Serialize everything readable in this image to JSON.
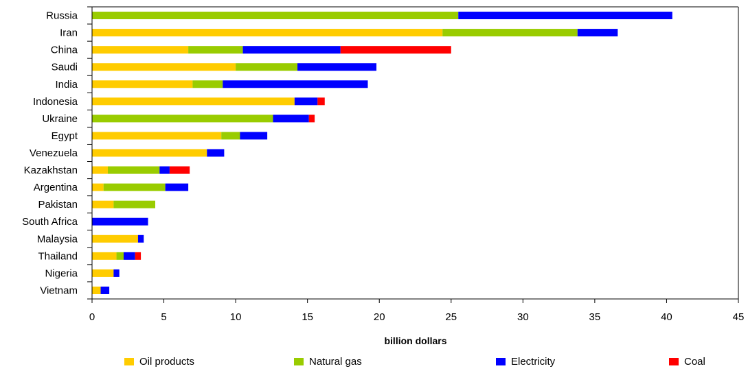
{
  "chart_data": {
    "type": "bar",
    "orientation": "horizontal",
    "stacked": true,
    "title": "",
    "xlabel": "billion dollars",
    "ylabel": "",
    "xlim": [
      0,
      45
    ],
    "xticks": [
      0,
      5,
      10,
      15,
      20,
      25,
      30,
      35,
      40,
      45
    ],
    "grid": false,
    "legend_position": "bottom",
    "categories": [
      "Russia",
      "Iran",
      "China",
      "Saudi",
      "India",
      "Indonesia",
      "Ukraine",
      "Egypt",
      "Venezuela",
      "Kazakhstan",
      "Argentina",
      "Pakistan",
      "South Africa",
      "Malaysia",
      "Thailand",
      "Nigeria",
      "Vietnam"
    ],
    "series": [
      {
        "name": "Oil products",
        "color": "#FFCC00",
        "values": [
          0,
          24.4,
          6.7,
          10,
          7,
          14.1,
          0,
          9,
          8,
          1.1,
          0.8,
          1.5,
          0,
          3.2,
          1.7,
          1.5,
          0.6
        ]
      },
      {
        "name": "Natural gas",
        "color": "#99CC00",
        "values": [
          25.5,
          9.4,
          3.8,
          4.3,
          2.1,
          0,
          12.6,
          1.3,
          0,
          3.6,
          4.3,
          2.9,
          0,
          0,
          0.5,
          0,
          0
        ]
      },
      {
        "name": "Electricity",
        "color": "#0000FF",
        "values": [
          14.9,
          2.8,
          6.8,
          5.5,
          10.1,
          1.6,
          2.5,
          1.9,
          1.2,
          0.7,
          1.6,
          0,
          3.9,
          0.4,
          0.8,
          0.4,
          0.6
        ]
      },
      {
        "name": "Coal",
        "color": "#FF0000",
        "values": [
          0,
          0,
          7.7,
          0,
          0,
          0.5,
          0.4,
          0,
          0,
          1.4,
          0,
          0,
          0,
          0,
          0.4,
          0,
          0
        ]
      }
    ]
  }
}
